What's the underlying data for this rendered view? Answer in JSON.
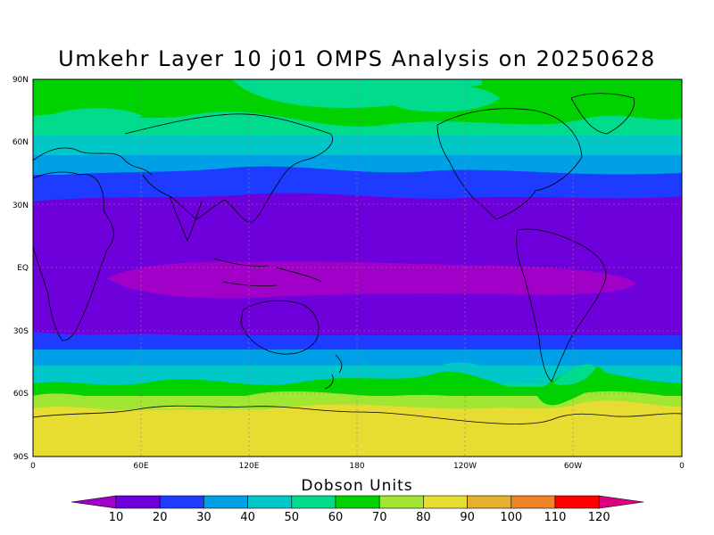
{
  "title": "Umkehr Layer 10 j01 OMPS Analysis on 20250628",
  "lat_labels": [
    "90N",
    "60N",
    "30N",
    "EQ",
    "30S",
    "60S",
    "90S"
  ],
  "lon_labels": [
    "0",
    "60E",
    "120E",
    "180",
    "120W",
    "60W",
    "0"
  ],
  "colorbar": {
    "title": "Dobson Units",
    "ticks": [
      "10",
      "20",
      "30",
      "40",
      "50",
      "60",
      "70",
      "80",
      "90",
      "100",
      "110",
      "120"
    ],
    "colors": [
      "#a000c8",
      "#6e00dc",
      "#1e3cff",
      "#00a0e6",
      "#00c8c8",
      "#00dc8c",
      "#00d200",
      "#a0e632",
      "#e6dc32",
      "#e6af2d",
      "#f08228",
      "#ff0000",
      "#dc0080"
    ]
  }
}
